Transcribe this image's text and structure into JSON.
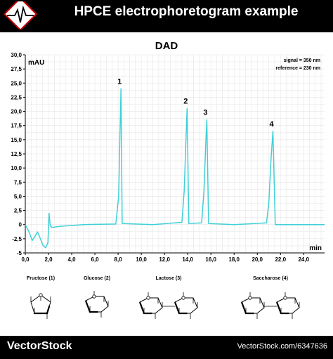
{
  "header": {
    "title": "HPCE electrophoretogram example"
  },
  "chart_data": {
    "type": "line",
    "title": "DAD",
    "ylabel": "mAU",
    "xlabel": "min",
    "xlim": [
      0,
      25.8
    ],
    "ylim": [
      -5,
      30
    ],
    "xticks": [
      0,
      2,
      4,
      6,
      8,
      10,
      12,
      14,
      16,
      18,
      20,
      22,
      24
    ],
    "xtick_labels": [
      "0,0",
      "2,0",
      "4,0",
      "6,0",
      "8,0",
      "10,0",
      "12,0",
      "14,0",
      "16,0",
      "18,0",
      "20,0",
      "22,0",
      "24,0"
    ],
    "yticks": [
      -5,
      -2.5,
      0,
      2.5,
      5,
      7.5,
      10,
      12.5,
      15,
      17.5,
      20,
      22.5,
      25,
      27.5,
      30
    ],
    "ytick_labels": [
      "-5",
      "-2,5",
      "0",
      "2,5",
      "5,0",
      "7,5",
      "10,0",
      "12,5",
      "15,0",
      "17,5",
      "20,0",
      "22,5",
      "25,0",
      "27,5",
      "30,0"
    ],
    "grid": true,
    "annotations": [
      "signal = 350 nm",
      "reference = 230 nm"
    ],
    "line_color": "#40d0d8",
    "series": [
      {
        "values": [
          [
            0.0,
            0.0
          ],
          [
            0.3,
            -1.2
          ],
          [
            0.6,
            -2.8
          ],
          [
            0.85,
            -2.0
          ],
          [
            1.05,
            -1.3
          ],
          [
            1.25,
            -2.2
          ],
          [
            1.5,
            -3.6
          ],
          [
            1.75,
            -4.1
          ],
          [
            1.95,
            -3.2
          ],
          [
            2.05,
            2.0
          ],
          [
            2.15,
            -0.2
          ],
          [
            2.3,
            -0.5
          ],
          [
            3.0,
            -0.3
          ],
          [
            5.0,
            0.0
          ],
          [
            7.8,
            0.1
          ],
          [
            8.05,
            5.0
          ],
          [
            8.15,
            15.0
          ],
          [
            8.25,
            24.0
          ],
          [
            8.35,
            0.2
          ],
          [
            11.0,
            0.0
          ],
          [
            13.5,
            0.4
          ],
          [
            13.7,
            6.0
          ],
          [
            13.85,
            15.0
          ],
          [
            13.95,
            20.5
          ],
          [
            14.1,
            0.2
          ],
          [
            15.2,
            0.3
          ],
          [
            15.4,
            6.0
          ],
          [
            15.55,
            14.0
          ],
          [
            15.65,
            18.5
          ],
          [
            15.8,
            0.2
          ],
          [
            18.0,
            0.0
          ],
          [
            20.8,
            0.3
          ],
          [
            21.0,
            4.0
          ],
          [
            21.2,
            12.0
          ],
          [
            21.35,
            16.5
          ],
          [
            21.55,
            0.0
          ],
          [
            25.8,
            0.0
          ]
        ]
      }
    ],
    "peaks": [
      {
        "label": "1",
        "x": 8.25,
        "y": 24.0
      },
      {
        "label": "2",
        "x": 13.95,
        "y": 20.5
      },
      {
        "label": "3",
        "x": 15.65,
        "y": 18.5
      },
      {
        "label": "4",
        "x": 21.35,
        "y": 16.5
      }
    ]
  },
  "structures": [
    {
      "name": "Fructose (1)",
      "kind": "furanose",
      "count": 1
    },
    {
      "name": "Glucose (2)",
      "kind": "pyranose",
      "count": 1
    },
    {
      "name": "Lactose (3)",
      "kind": "pyranose-pair",
      "count": 2
    },
    {
      "name": "Saccharose (4)",
      "kind": "pyranose-pair",
      "count": 2
    }
  ],
  "footer": {
    "brand": "VectorStock",
    "credit": "VectorStock.com/6347636"
  }
}
